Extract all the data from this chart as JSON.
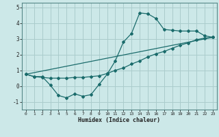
{
  "title": "",
  "xlabel": "Humidex (Indice chaleur)",
  "background_color": "#cce8e8",
  "grid_color": "#aacccc",
  "line_color": "#1a6b6b",
  "xlim": [
    -0.5,
    23.5
  ],
  "ylim": [
    -1.5,
    5.3
  ],
  "xticks": [
    0,
    1,
    2,
    3,
    4,
    5,
    6,
    7,
    8,
    9,
    10,
    11,
    12,
    13,
    14,
    15,
    16,
    17,
    18,
    19,
    20,
    21,
    22,
    23
  ],
  "yticks": [
    -1,
    0,
    1,
    2,
    3,
    4,
    5
  ],
  "line1_x": [
    0,
    1,
    2,
    3,
    4,
    5,
    6,
    7,
    8,
    9,
    10,
    11,
    12,
    13,
    14,
    15,
    16,
    17,
    18,
    19,
    20,
    21,
    22,
    23
  ],
  "line1_y": [
    0.75,
    0.6,
    0.6,
    0.05,
    -0.6,
    -0.75,
    -0.5,
    -0.65,
    -0.55,
    0.1,
    0.75,
    1.6,
    2.8,
    3.35,
    4.65,
    4.6,
    4.3,
    3.6,
    3.55,
    3.5,
    3.5,
    3.5,
    3.2,
    3.1
  ],
  "line2_x": [
    0,
    1,
    2,
    3,
    4,
    5,
    6,
    7,
    8,
    9,
    10,
    11,
    12,
    13,
    14,
    15,
    16,
    17,
    18,
    19,
    20,
    21,
    22,
    23
  ],
  "line2_y": [
    0.75,
    0.6,
    0.55,
    0.5,
    0.5,
    0.5,
    0.55,
    0.55,
    0.6,
    0.65,
    0.8,
    1.0,
    1.15,
    1.4,
    1.6,
    1.85,
    2.05,
    2.2,
    2.4,
    2.6,
    2.75,
    2.95,
    3.05,
    3.1
  ],
  "line3_x": [
    0,
    23
  ],
  "line3_y": [
    0.75,
    3.1
  ]
}
